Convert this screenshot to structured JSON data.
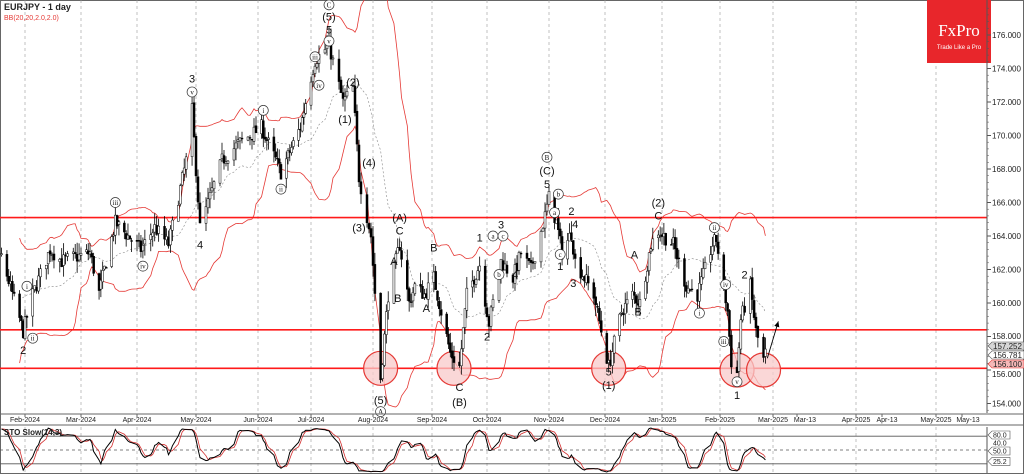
{
  "header": {
    "title": "EURJPY - 1 day",
    "indicator": "BB(20,20,2.0,2.0)"
  },
  "logo": {
    "brand": "FxPro",
    "tagline": "Trade Like a Pro",
    "color": "#e8262b"
  },
  "colors": {
    "bands": "#e53935",
    "levels": "#ff1a1a",
    "circle_fill": "#f8c9c9",
    "candles": "#000000",
    "stoch_k": "#000000",
    "stoch_d": "#d32f2f"
  },
  "chart_data": {
    "type": "candlestick",
    "symbol": "EURJPY",
    "timeframe": "1 day",
    "ylim": [
      153,
      178
    ],
    "y_ticks": [
      154,
      156,
      158,
      160,
      162,
      164,
      166,
      168,
      170,
      172,
      174,
      176
    ],
    "y_tick_labels": [
      "154.000",
      "156.000",
      "158.000",
      "160.000",
      "162.000",
      "164.000",
      "166.000",
      "168.000",
      "170.000",
      "172.000",
      "174.000",
      "176.000"
    ],
    "price_tags": [
      {
        "label": "157.252",
        "value": 157.252,
        "style": "gray"
      },
      {
        "label": "156.781",
        "value": 156.781,
        "style": "white"
      },
      {
        "label": "156.100",
        "value": 156.1,
        "style": "pink"
      }
    ],
    "x_ticks": [
      "Feb-2024",
      "Mar-2024",
      "Apr-2024",
      "May-2024",
      "Jun-2024",
      "Jul-2024",
      "Aug-2024",
      "Sep-2024",
      "Oct-2024",
      "Nov-2024",
      "Dec-2024",
      "Jan-2025",
      "Feb-2025",
      "Mar-2025",
      "Mar-13",
      "Apr-2025",
      "Apr-13",
      "May-2025",
      "May-13"
    ],
    "horizontal_levels": [
      165.1,
      158.4,
      156.1
    ],
    "close_path": [
      [
        "2024-01-02",
        156.5
      ],
      [
        "2024-01-19",
        162.8
      ],
      [
        "2024-01-31",
        158.3
      ],
      [
        "2024-02-05",
        160.5
      ],
      [
        "2024-02-14",
        163.2
      ],
      [
        "2024-02-20",
        162.5
      ],
      [
        "2024-03-06",
        163.0
      ],
      [
        "2024-03-11",
        160.6
      ],
      [
        "2024-03-20",
        164.8
      ],
      [
        "2024-04-03",
        163.2
      ],
      [
        "2024-04-10",
        164.5
      ],
      [
        "2024-04-17",
        163.5
      ],
      [
        "2024-04-26",
        168.5
      ],
      [
        "2024-04-29",
        171.5
      ],
      [
        "2024-05-03",
        164.5
      ],
      [
        "2024-05-14",
        168.5
      ],
      [
        "2024-05-22",
        169.5
      ],
      [
        "2024-06-03",
        170.5
      ],
      [
        "2024-06-14",
        167.8
      ],
      [
        "2024-06-25",
        170.5
      ],
      [
        "2024-07-03",
        174.5
      ],
      [
        "2024-07-10",
        175.4
      ],
      [
        "2024-07-17",
        172.0
      ],
      [
        "2024-07-22",
        172.8
      ],
      [
        "2024-07-25",
        167.5
      ],
      [
        "2024-07-31",
        164.0
      ],
      [
        "2024-08-05",
        155.5
      ],
      [
        "2024-08-09",
        160.5
      ],
      [
        "2024-08-15",
        163.5
      ],
      [
        "2024-08-20",
        160.0
      ],
      [
        "2024-08-23",
        161.0
      ],
      [
        "2024-08-28",
        160.5
      ],
      [
        "2024-09-02",
        161.5
      ],
      [
        "2024-09-11",
        157.0
      ],
      [
        "2024-09-16",
        156.2
      ],
      [
        "2024-09-20",
        160.5
      ],
      [
        "2024-09-27",
        162.3
      ],
      [
        "2024-10-02",
        158.8
      ],
      [
        "2024-10-08",
        162.5
      ],
      [
        "2024-10-14",
        161.5
      ],
      [
        "2024-10-18",
        163.0
      ],
      [
        "2024-10-23",
        162.0
      ],
      [
        "2024-10-30",
        165.2
      ],
      [
        "2024-11-01",
        166.3
      ],
      [
        "2024-11-05",
        164.8
      ],
      [
        "2024-11-08",
        163.0
      ],
      [
        "2024-11-13",
        164.2
      ],
      [
        "2024-11-15",
        162.5
      ],
      [
        "2024-11-25",
        160.5
      ],
      [
        "2024-12-03",
        156.2
      ],
      [
        "2024-12-10",
        159.5
      ],
      [
        "2024-12-16",
        160.5
      ],
      [
        "2024-12-20",
        160.0
      ],
      [
        "2024-12-26",
        163.5
      ],
      [
        "2024-12-30",
        164.3
      ],
      [
        "2025-01-07",
        163.5
      ],
      [
        "2025-01-14",
        161.0
      ],
      [
        "2025-01-20",
        160.5
      ],
      [
        "2025-01-28",
        163.5
      ],
      [
        "2025-01-30",
        163.8
      ],
      [
        "2025-02-05",
        159.5
      ],
      [
        "2025-02-07",
        156.5
      ],
      [
        "2025-02-10",
        155.8
      ],
      [
        "2025-02-12",
        159.0
      ],
      [
        "2025-02-17",
        161.0
      ],
      [
        "2025-02-20",
        158.3
      ],
      [
        "2025-02-24",
        156.6
      ],
      [
        "2025-02-25",
        157.25
      ]
    ],
    "highlight_circles": [
      [
        "2024-08-05",
        156.1
      ],
      [
        "2024-09-13",
        156.1
      ],
      [
        "2024-12-03",
        156.1
      ],
      [
        "2025-02-10",
        156.0
      ],
      [
        "2025-02-24",
        156.0
      ]
    ],
    "projection_arrow": {
      "from": [
        "2025-02-26",
        156.7
      ],
      "to": [
        "2025-03-03",
        158.9
      ]
    },
    "wave_labels": [
      {
        "t": "2",
        "d": "2024-01-31",
        "p": 157.2
      },
      {
        "t": "i",
        "d": "2024-02-02",
        "p": 161.0,
        "c": 1
      },
      {
        "t": "ii",
        "d": "2024-02-05",
        "p": 157.9,
        "c": 1
      },
      {
        "t": "iii",
        "d": "2024-03-20",
        "p": 166.0,
        "c": 1
      },
      {
        "t": "iv",
        "d": "2024-04-04",
        "p": 162.2,
        "c": 1
      },
      {
        "t": "3",
        "d": "2024-04-29",
        "p": 173.4
      },
      {
        "t": "v",
        "d": "2024-04-29",
        "p": 172.6,
        "c": 1
      },
      {
        "t": "4",
        "d": "2024-05-03",
        "p": 163.5
      },
      {
        "t": "i",
        "d": "2024-06-04",
        "p": 171.5,
        "c": 1
      },
      {
        "t": "ii",
        "d": "2024-06-14",
        "p": 166.8,
        "c": 1
      },
      {
        "t": "iii",
        "d": "2024-07-03",
        "p": 174.7,
        "c": 1
      },
      {
        "t": "iv",
        "d": "2024-07-05",
        "p": 173.0,
        "c": 1
      },
      {
        "t": "v",
        "d": "2024-07-10",
        "p": 175.7,
        "c": 1
      },
      {
        "t": "5",
        "d": "2024-07-10",
        "p": 176.4
      },
      {
        "t": "(5)",
        "d": "2024-07-10",
        "p": 177.1
      },
      {
        "t": "C",
        "d": "2024-07-10",
        "p": 177.8,
        "c": 1
      },
      {
        "t": "(2)",
        "d": "2024-07-22",
        "p": 173.2
      },
      {
        "t": "(1)",
        "d": "2024-07-18",
        "p": 171.0
      },
      {
        "t": "(4)",
        "d": "2024-07-30",
        "p": 168.4
      },
      {
        "t": "(3)",
        "d": "2024-07-25",
        "p": 164.5
      },
      {
        "t": "(A)",
        "d": "2024-08-15",
        "p": 165.1
      },
      {
        "t": "C",
        "d": "2024-08-15",
        "p": 164.4
      },
      {
        "t": "A",
        "d": "2024-08-12",
        "p": 162.5
      },
      {
        "t": "B",
        "d": "2024-08-14",
        "p": 160.3
      },
      {
        "t": "(5)",
        "d": "2024-08-05",
        "p": 154.2
      },
      {
        "t": "A",
        "d": "2024-08-05",
        "p": 153.6,
        "c": 1
      },
      {
        "t": "B",
        "d": "2024-09-02",
        "p": 163.3
      },
      {
        "t": "A",
        "d": "2024-08-29",
        "p": 159.7
      },
      {
        "t": "C",
        "d": "2024-09-16",
        "p": 155.0
      },
      {
        "t": "(B)",
        "d": "2024-09-16",
        "p": 154.1
      },
      {
        "t": "1",
        "d": "2024-09-27",
        "p": 163.9
      },
      {
        "t": "2",
        "d": "2024-10-01",
        "p": 158.0
      },
      {
        "t": "3",
        "d": "2024-10-08",
        "p": 164.7
      },
      {
        "t": "a",
        "d": "2024-10-04",
        "p": 164.0,
        "c": 1
      },
      {
        "t": "c",
        "d": "2024-10-09",
        "p": 164.0,
        "c": 1
      },
      {
        "t": "b",
        "d": "2024-10-07",
        "p": 161.7,
        "c": 1
      },
      {
        "t": "4",
        "d": "2024-10-15",
        "p": 161.7
      },
      {
        "t": "5",
        "d": "2024-10-31",
        "p": 167.1
      },
      {
        "t": "(C)",
        "d": "2024-10-31",
        "p": 167.9
      },
      {
        "t": "B",
        "d": "2024-10-31",
        "p": 168.7,
        "c": 1
      },
      {
        "t": "b",
        "d": "2024-11-06",
        "p": 166.5,
        "c": 1
      },
      {
        "t": "a",
        "d": "2024-11-04",
        "p": 165.4,
        "c": 1
      },
      {
        "t": "2",
        "d": "2024-11-13",
        "p": 165.5
      },
      {
        "t": "4",
        "d": "2024-11-15",
        "p": 165.2
      },
      {
        "t": "c",
        "d": "2024-11-07",
        "p": 162.9,
        "c": 1
      },
      {
        "t": "1",
        "d": "2024-11-07",
        "p": 162.2
      },
      {
        "t": "3",
        "d": "2024-11-14",
        "p": 161.2
      },
      {
        "t": "5",
        "d": "2024-12-03",
        "p": 155.9
      },
      {
        "t": "(1)",
        "d": "2024-12-03",
        "p": 155.1
      },
      {
        "t": "A",
        "d": "2024-12-17",
        "p": 162.9
      },
      {
        "t": "B",
        "d": "2024-12-19",
        "p": 159.5
      },
      {
        "t": "(2)",
        "d": "2024-12-30",
        "p": 166.0
      },
      {
        "t": "C",
        "d": "2024-12-30",
        "p": 165.3
      },
      {
        "t": "ii",
        "d": "2025-01-29",
        "p": 164.5,
        "c": 1
      },
      {
        "t": "i",
        "d": "2025-01-21",
        "p": 159.4,
        "c": 1
      },
      {
        "t": "iv",
        "d": "2025-02-04",
        "p": 161.1,
        "c": 1
      },
      {
        "t": "iii",
        "d": "2025-02-03",
        "p": 157.7,
        "c": 1
      },
      {
        "t": "v",
        "d": "2025-02-10",
        "p": 155.3,
        "c": 1
      },
      {
        "t": "1",
        "d": "2025-02-10",
        "p": 154.5
      },
      {
        "t": "2",
        "d": "2025-02-14",
        "p": 161.7
      }
    ],
    "stochastic": {
      "label": "STO Slow(14,3)",
      "levels": [
        80,
        50,
        20
      ],
      "tag_labels": [
        "80.0",
        "50.0",
        "25.2"
      ],
      "hidden_label": "40.0",
      "ylim": [
        0,
        100
      ],
      "last": 25.2
    }
  }
}
